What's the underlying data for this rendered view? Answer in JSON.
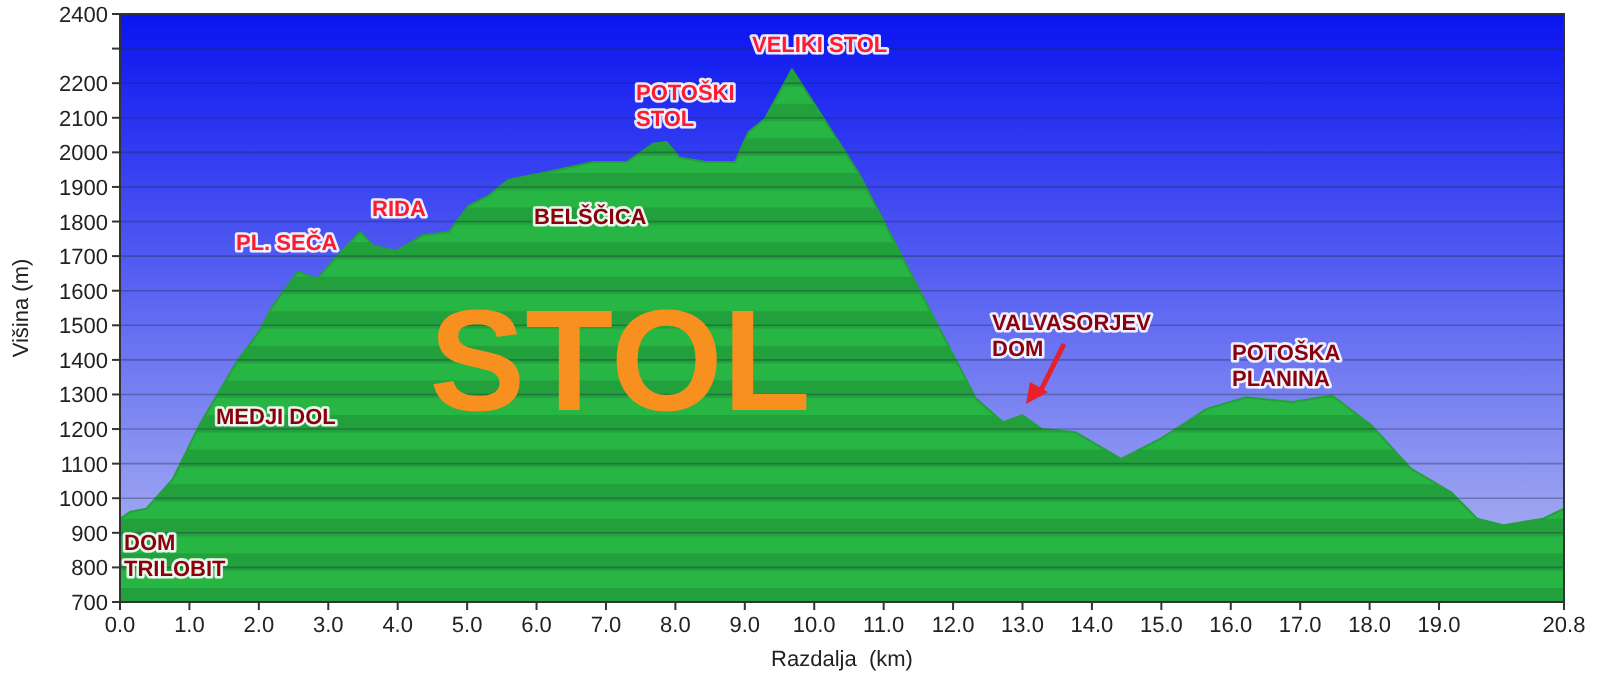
{
  "chart_data": {
    "type": "area",
    "title": "STOL",
    "xlabel": "Razdalja  (km)",
    "ylabel": "Višina (m)",
    "x": [
      0,
      0.14,
      0.38,
      0.76,
      1.14,
      1.7,
      2.0,
      2.18,
      2.56,
      2.84,
      3.22,
      3.46,
      3.65,
      3.98,
      4.36,
      4.74,
      5.02,
      5.31,
      5.59,
      6.16,
      6.82,
      7.3,
      7.68,
      7.87,
      8.06,
      8.44,
      8.86,
      9.05,
      9.29,
      9.57,
      9.68,
      10.63,
      11.58,
      12.33,
      12.72,
      13.0,
      13.28,
      13.76,
      14.42,
      14.99,
      15.66,
      16.23,
      16.89,
      17.46,
      18.03,
      18.6,
      19.17,
      19.55,
      19.93,
      20.5,
      20.8
    ],
    "series": [
      {
        "color": "#22a03c",
        "values": [
          940,
          960,
          970,
          1055,
          1210,
          1400,
          1480,
          1550,
          1655,
          1635,
          1720,
          1770,
          1730,
          1715,
          1760,
          1770,
          1845,
          1875,
          1920,
          1943,
          1972,
          1972,
          2025,
          2030,
          1985,
          1972,
          1972,
          2058,
          2097,
          2200,
          2240,
          1943,
          1577,
          1288,
          1220,
          1240,
          1200,
          1191,
          1114,
          1172,
          1259,
          1292,
          1278,
          1297,
          1210,
          1085,
          1018,
          941,
          922,
          941,
          970
        ]
      }
    ],
    "xlim": [
      0,
      20.8
    ],
    "xticks": [
      {
        "value": 0,
        "label": "0.0"
      },
      {
        "value": 1,
        "label": "1.0"
      },
      {
        "value": 2,
        "label": "2.0"
      },
      {
        "value": 3,
        "label": "3.0"
      },
      {
        "value": 4,
        "label": "4.0"
      },
      {
        "value": 5,
        "label": "5.0"
      },
      {
        "value": 6,
        "label": "6.0"
      },
      {
        "value": 7,
        "label": "7.0"
      },
      {
        "value": 8,
        "label": "8.0"
      },
      {
        "value": 9,
        "label": "9.0"
      },
      {
        "value": 10,
        "label": "10.0"
      },
      {
        "value": 11,
        "label": "11.0"
      },
      {
        "value": 12,
        "label": "12.0"
      },
      {
        "value": 13,
        "label": "13.0"
      },
      {
        "value": 14,
        "label": "14.0"
      },
      {
        "value": 15,
        "label": "15.0"
      },
      {
        "value": 16,
        "label": "16.0"
      },
      {
        "value": 17,
        "label": "17.0"
      },
      {
        "value": 18,
        "label": "18.0"
      },
      {
        "value": 19,
        "label": "19.0"
      },
      {
        "value": 20.8,
        "label": "20.8"
      }
    ],
    "ylim": [
      700,
      2400
    ],
    "yticks": [
      700,
      800,
      900,
      1000,
      1100,
      1200,
      1300,
      1400,
      1500,
      1600,
      1700,
      1800,
      1900,
      2000,
      2100,
      2200,
      {
        "value": 2300,
        "label": null
      },
      2400
    ],
    "grid": "y",
    "annotations": [
      "VELIKI STOL",
      "POTOŠKI\nSTOL",
      "PL. SEČA",
      "RIDA",
      "BELŠČICA",
      "MEDJI DOL",
      "DOM\nTRILOBIT",
      "VALVASORJEV\nDOM",
      "POTOŠKA\nPLANINA"
    ]
  }
}
